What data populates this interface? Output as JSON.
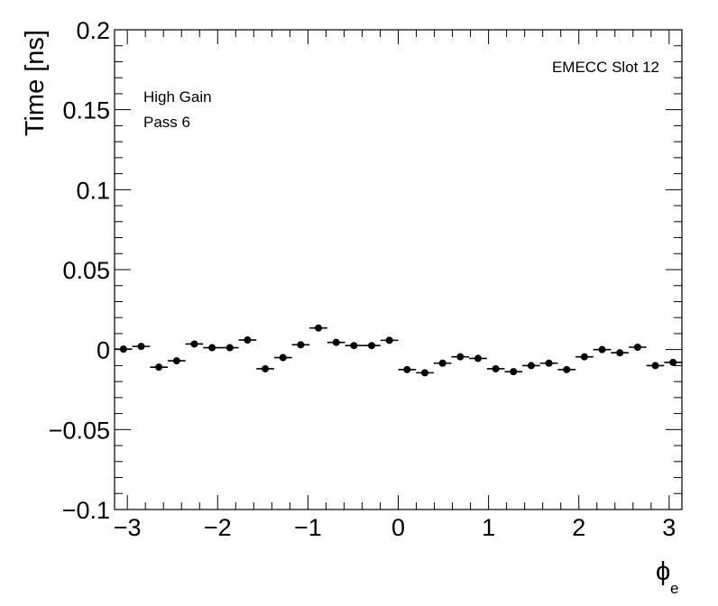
{
  "chart_data": {
    "type": "scatter",
    "title": "",
    "xlabel": "ϕ",
    "xlabel_sub": "e",
    "ylabel": "Time [ns]",
    "xlim": [
      -3.1416,
      3.1416
    ],
    "ylim": [
      -0.1,
      0.2
    ],
    "grid": false,
    "x_ticks": [
      -3,
      -2,
      -1,
      0,
      1,
      2,
      3
    ],
    "x_tick_labels": [
      "−3",
      "−2",
      "−1",
      "0",
      "1",
      "2",
      "3"
    ],
    "y_ticks": [
      -0.1,
      -0.05,
      0,
      0.05,
      0.1,
      0.15,
      0.2
    ],
    "y_tick_labels": [
      "−0.1",
      "−0.05",
      "0",
      "0.05",
      "0.1",
      "0.15",
      "0.2"
    ],
    "annotations": {
      "top_right": "EMECC Slot 12",
      "line1": "High Gain",
      "line2": "Pass 6"
    },
    "bin_half_width": 0.0982,
    "series": [
      {
        "x": [
          -3.0434,
          -2.847,
          -2.6507,
          -2.4543,
          -2.258,
          -2.0617,
          -1.8653,
          -1.669,
          -1.4726,
          -1.2763,
          -1.0799,
          -0.8836,
          -0.6872,
          -0.4909,
          -0.2945,
          -0.0982,
          0.0982,
          0.2945,
          0.4909,
          0.6872,
          0.8836,
          1.0799,
          1.2763,
          1.4726,
          1.669,
          1.8653,
          2.0617,
          2.258,
          2.4543,
          2.6507,
          2.847,
          3.0434
        ],
        "y": [
          0.0003,
          0.002,
          -0.011,
          -0.007,
          0.0035,
          0.0012,
          0.0012,
          0.006,
          -0.012,
          -0.005,
          0.003,
          0.0135,
          0.0045,
          0.0025,
          0.0025,
          0.0058,
          -0.0125,
          -0.0145,
          -0.0085,
          -0.0045,
          -0.0055,
          -0.012,
          -0.0138,
          -0.01,
          -0.0085,
          -0.0125,
          -0.0045,
          0.0,
          -0.002,
          0.0015,
          -0.01,
          -0.008
        ]
      }
    ]
  }
}
